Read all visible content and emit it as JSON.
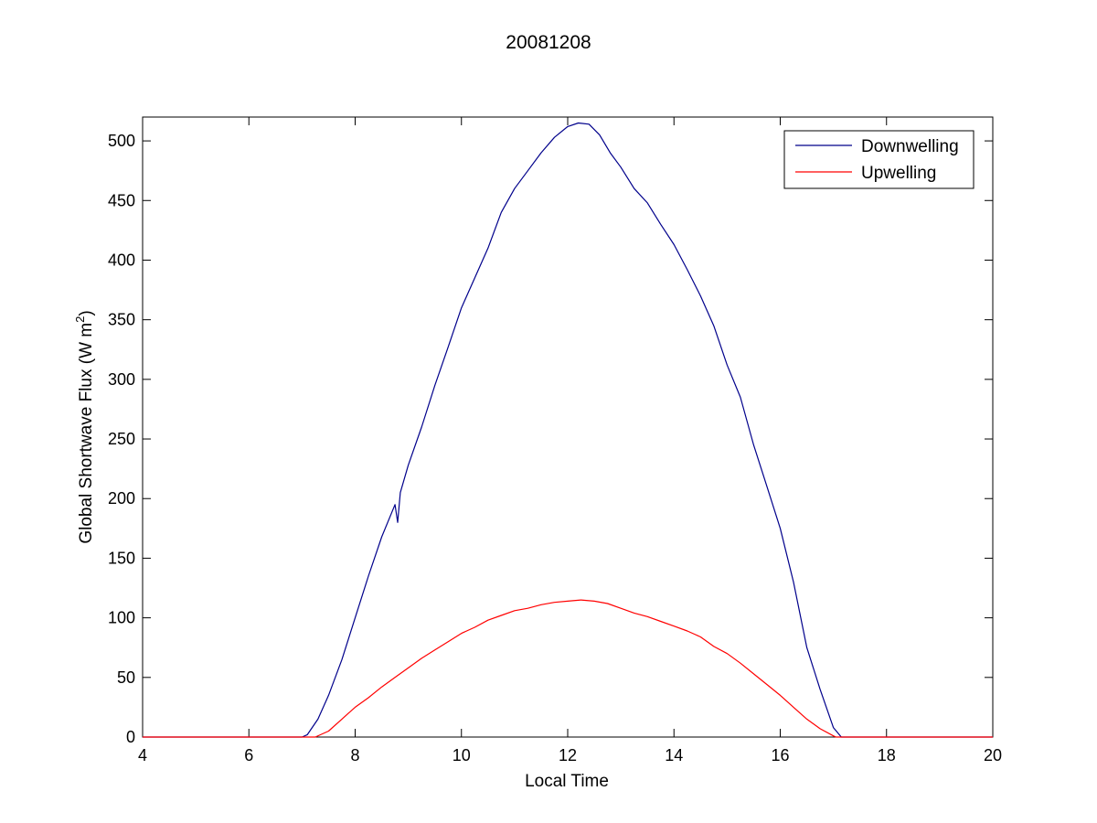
{
  "chart_data": {
    "type": "line",
    "title": "20081208",
    "xlabel": "Local Time",
    "ylabel": {
      "base": "Global Shortwave Flux (W m",
      "superscript": "2",
      "close": ")"
    },
    "xlim": [
      4,
      20
    ],
    "ylim": [
      0,
      520
    ],
    "xticks": [
      4,
      6,
      8,
      10,
      12,
      14,
      16,
      18,
      20
    ],
    "yticks": [
      0,
      50,
      100,
      150,
      200,
      250,
      300,
      350,
      400,
      450,
      500
    ],
    "grid": false,
    "legend_position": "top-right",
    "series": [
      {
        "name": "Downwelling",
        "color": "#00008b",
        "points": [
          [
            4.0,
            0
          ],
          [
            7.0,
            0
          ],
          [
            7.1,
            2
          ],
          [
            7.3,
            15
          ],
          [
            7.5,
            35
          ],
          [
            7.75,
            65
          ],
          [
            8.0,
            100
          ],
          [
            8.25,
            135
          ],
          [
            8.5,
            168
          ],
          [
            8.75,
            195
          ],
          [
            8.8,
            180
          ],
          [
            8.85,
            205
          ],
          [
            9.0,
            228
          ],
          [
            9.25,
            260
          ],
          [
            9.5,
            295
          ],
          [
            9.75,
            327
          ],
          [
            10.0,
            360
          ],
          [
            10.25,
            385
          ],
          [
            10.5,
            410
          ],
          [
            10.75,
            440
          ],
          [
            11.0,
            460
          ],
          [
            11.25,
            475
          ],
          [
            11.5,
            490
          ],
          [
            11.75,
            503
          ],
          [
            12.0,
            512
          ],
          [
            12.2,
            515
          ],
          [
            12.4,
            514
          ],
          [
            12.6,
            505
          ],
          [
            12.8,
            490
          ],
          [
            13.0,
            478
          ],
          [
            13.25,
            460
          ],
          [
            13.5,
            448
          ],
          [
            13.75,
            430
          ],
          [
            14.0,
            413
          ],
          [
            14.25,
            392
          ],
          [
            14.5,
            370
          ],
          [
            14.75,
            345
          ],
          [
            15.0,
            312
          ],
          [
            15.25,
            285
          ],
          [
            15.5,
            245
          ],
          [
            15.75,
            210
          ],
          [
            16.0,
            175
          ],
          [
            16.25,
            130
          ],
          [
            16.5,
            75
          ],
          [
            16.75,
            40
          ],
          [
            17.0,
            8
          ],
          [
            17.15,
            0
          ],
          [
            20.0,
            0
          ]
        ]
      },
      {
        "name": "Upwelling",
        "color": "#ff0000",
        "points": [
          [
            4.0,
            0
          ],
          [
            7.25,
            0
          ],
          [
            7.5,
            5
          ],
          [
            7.75,
            15
          ],
          [
            8.0,
            25
          ],
          [
            8.25,
            33
          ],
          [
            8.5,
            42
          ],
          [
            8.75,
            50
          ],
          [
            9.0,
            58
          ],
          [
            9.25,
            66
          ],
          [
            9.5,
            73
          ],
          [
            9.75,
            80
          ],
          [
            10.0,
            87
          ],
          [
            10.25,
            92
          ],
          [
            10.5,
            98
          ],
          [
            10.75,
            102
          ],
          [
            11.0,
            106
          ],
          [
            11.25,
            108
          ],
          [
            11.5,
            111
          ],
          [
            11.75,
            113
          ],
          [
            12.0,
            114
          ],
          [
            12.25,
            115
          ],
          [
            12.5,
            114
          ],
          [
            12.75,
            112
          ],
          [
            13.0,
            108
          ],
          [
            13.25,
            104
          ],
          [
            13.5,
            101
          ],
          [
            13.75,
            97
          ],
          [
            14.0,
            93
          ],
          [
            14.25,
            89
          ],
          [
            14.5,
            84
          ],
          [
            14.75,
            76
          ],
          [
            15.0,
            70
          ],
          [
            15.25,
            62
          ],
          [
            15.5,
            53
          ],
          [
            15.75,
            44
          ],
          [
            16.0,
            35
          ],
          [
            16.25,
            25
          ],
          [
            16.5,
            15
          ],
          [
            16.75,
            7
          ],
          [
            17.0,
            1
          ],
          [
            17.05,
            0
          ],
          [
            20.0,
            0
          ]
        ]
      }
    ]
  }
}
